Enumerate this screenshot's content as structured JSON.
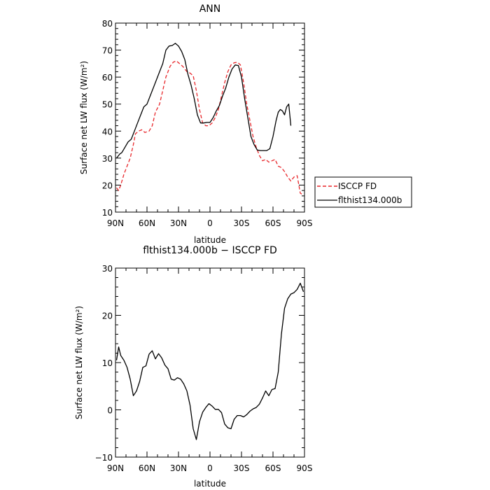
{
  "chart_data": [
    {
      "type": "line",
      "title": "ANN",
      "xlabel": "latitude",
      "ylabel": "Surface net LW flux (W/m²)",
      "xlim": [
        -90,
        90
      ],
      "ylim": [
        10,
        80
      ],
      "x_tick_labels": [
        "90N",
        "60N",
        "30N",
        "0",
        "30S",
        "60S",
        "90S"
      ],
      "y_ticks": [
        10,
        20,
        30,
        40,
        50,
        60,
        70,
        80
      ],
      "legend": "right",
      "series": [
        {
          "name": "ISCCP FD",
          "color": "#e8262a",
          "dash": "dashed",
          "points": [
            [
              -89,
              19
            ],
            [
              -87,
              18
            ],
            [
              -85,
              20
            ],
            [
              -82,
              24
            ],
            [
              -79,
              27
            ],
            [
              -76,
              30
            ],
            [
              -73,
              35
            ],
            [
              -71,
              39
            ],
            [
              -68,
              40
            ],
            [
              -65,
              40.5
            ],
            [
              -62,
              39.5
            ],
            [
              -58,
              40
            ],
            [
              -55,
              42
            ],
            [
              -52,
              47
            ],
            [
              -48,
              50
            ],
            [
              -45,
              55
            ],
            [
              -42,
              60
            ],
            [
              -38,
              64
            ],
            [
              -35,
              65.5
            ],
            [
              -32,
              66
            ],
            [
              -29,
              65
            ],
            [
              -26,
              64
            ],
            [
              -22,
              62
            ],
            [
              -19,
              61.5
            ],
            [
              -16,
              60.5
            ],
            [
              -13,
              55
            ],
            [
              -10,
              48
            ],
            [
              -7,
              43
            ],
            [
              -4,
              42
            ],
            [
              -1,
              42
            ],
            [
              2,
              43
            ],
            [
              5,
              45
            ],
            [
              8,
              48
            ],
            [
              11,
              53
            ],
            [
              14,
              58
            ],
            [
              17,
              62
            ],
            [
              20,
              64.5
            ],
            [
              23,
              65.3
            ],
            [
              26,
              65.5
            ],
            [
              29,
              64.5
            ],
            [
              32,
              58
            ],
            [
              35,
              50
            ],
            [
              38,
              44
            ],
            [
              41,
              38
            ],
            [
              44,
              34
            ],
            [
              47,
              31
            ],
            [
              50,
              29
            ],
            [
              53,
              29.5
            ],
            [
              56,
              28.5
            ],
            [
              59,
              29
            ],
            [
              62,
              29.5
            ],
            [
              65,
              27
            ],
            [
              68,
              26.5
            ],
            [
              71,
              25
            ],
            [
              74,
              23
            ],
            [
              77,
              21.5
            ],
            [
              80,
              23
            ],
            [
              83,
              23.5
            ],
            [
              86,
              17
            ],
            [
              88,
              16.5
            ]
          ]
        },
        {
          "name": "flthist134.000b",
          "color": "#000000",
          "dash": "solid",
          "points": [
            [
              -89,
              30
            ],
            [
              -86,
              31.5
            ],
            [
              -84,
              32
            ],
            [
              -81,
              34
            ],
            [
              -78,
              36
            ],
            [
              -75,
              37
            ],
            [
              -72,
              40
            ],
            [
              -69,
              43
            ],
            [
              -66,
              46
            ],
            [
              -63,
              49
            ],
            [
              -60,
              50
            ],
            [
              -57,
              53
            ],
            [
              -54,
              56
            ],
            [
              -51,
              59
            ],
            [
              -48,
              62
            ],
            [
              -45,
              65
            ],
            [
              -42,
              70
            ],
            [
              -39,
              71.5
            ],
            [
              -36,
              71.7
            ],
            [
              -33,
              72.5
            ],
            [
              -30,
              71.5
            ],
            [
              -27,
              69.5
            ],
            [
              -24,
              66.5
            ],
            [
              -21,
              61
            ],
            [
              -18,
              57
            ],
            [
              -15,
              52
            ],
            [
              -12,
              46
            ],
            [
              -9,
              43
            ],
            [
              -6,
              43
            ],
            [
              -3,
              43.2
            ],
            [
              0,
              43.2
            ],
            [
              3,
              45
            ],
            [
              6,
              47.5
            ],
            [
              9,
              49.5
            ],
            [
              12,
              53
            ],
            [
              15,
              56
            ],
            [
              18,
              60
            ],
            [
              21,
              63
            ],
            [
              24,
              64.5
            ],
            [
              27,
              64.3
            ],
            [
              30,
              60
            ],
            [
              33,
              52
            ],
            [
              36,
              45
            ],
            [
              39,
              38
            ],
            [
              42,
              35
            ],
            [
              45,
              33
            ],
            [
              48,
              32.8
            ],
            [
              51,
              32.8
            ],
            [
              54,
              32.8
            ],
            [
              57,
              33.5
            ],
            [
              60,
              38
            ],
            [
              63,
              44
            ],
            [
              65,
              47
            ],
            [
              67,
              48
            ],
            [
              69,
              47.5
            ],
            [
              71,
              46
            ],
            [
              73,
              49
            ],
            [
              75,
              50
            ],
            [
              77,
              42
            ]
          ]
        }
      ]
    },
    {
      "type": "line",
      "title": "flthist134.000b − ISCCP FD",
      "xlabel": "latitude",
      "ylabel": "Surface net LW flux (W/m²)",
      "xlim": [
        -90,
        90
      ],
      "ylim": [
        -10,
        30
      ],
      "x_tick_labels": [
        "90N",
        "60N",
        "30N",
        "0",
        "30S",
        "60S",
        "90S"
      ],
      "y_ticks": [
        -10,
        0,
        10,
        20,
        30
      ],
      "series": [
        {
          "name": "",
          "color": "#000000",
          "dash": "solid",
          "points": [
            [
              -89,
              10.5
            ],
            [
              -87,
              13.3
            ],
            [
              -85,
              11.5
            ],
            [
              -82,
              10.5
            ],
            [
              -79,
              9
            ],
            [
              -76,
              6.5
            ],
            [
              -73,
              3
            ],
            [
              -70,
              4
            ],
            [
              -67,
              6
            ],
            [
              -64,
              9
            ],
            [
              -61,
              9.3
            ],
            [
              -58,
              11.8
            ],
            [
              -55,
              12.5
            ],
            [
              -52,
              10.8
            ],
            [
              -49,
              11.9
            ],
            [
              -46,
              11
            ],
            [
              -43,
              9.5
            ],
            [
              -40,
              8.7
            ],
            [
              -37,
              6.5
            ],
            [
              -34,
              6.3
            ],
            [
              -31,
              6.8
            ],
            [
              -28,
              6.5
            ],
            [
              -25,
              5.5
            ],
            [
              -22,
              4
            ],
            [
              -19,
              1
            ],
            [
              -16,
              -4
            ],
            [
              -13,
              -6.3
            ],
            [
              -10,
              -2.5
            ],
            [
              -7,
              -0.5
            ],
            [
              -4,
              0.5
            ],
            [
              -1,
              1.3
            ],
            [
              2,
              0.8
            ],
            [
              5,
              0.1
            ],
            [
              8,
              0.1
            ],
            [
              11,
              -0.6
            ],
            [
              14,
              -3
            ],
            [
              17,
              -3.8
            ],
            [
              20,
              -4
            ],
            [
              23,
              -2
            ],
            [
              26,
              -1.2
            ],
            [
              29,
              -1.2
            ],
            [
              32,
              -1.5
            ],
            [
              35,
              -1
            ],
            [
              38,
              -0.3
            ],
            [
              41,
              0.2
            ],
            [
              44,
              0.5
            ],
            [
              47,
              1.2
            ],
            [
              50,
              2.5
            ],
            [
              53,
              4
            ],
            [
              56,
              3
            ],
            [
              59,
              4.3
            ],
            [
              62,
              4.5
            ],
            [
              65,
              8
            ],
            [
              68,
              16
            ],
            [
              71,
              21.5
            ],
            [
              74,
              23.5
            ],
            [
              77,
              24.5
            ],
            [
              80,
              24.8
            ],
            [
              83,
              25.5
            ],
            [
              86,
              26.8
            ],
            [
              89,
              25
            ]
          ]
        }
      ]
    }
  ]
}
